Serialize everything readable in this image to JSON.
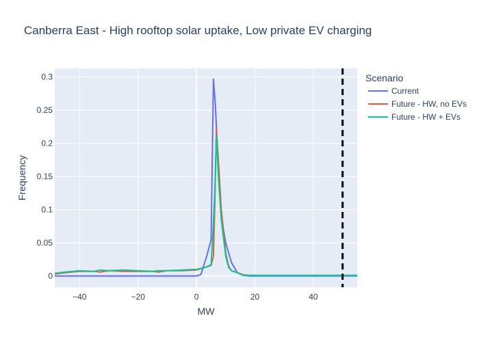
{
  "chart_data": {
    "type": "line",
    "title": "Canberra East - High rooftop solar uptake, Low private EV charging",
    "xlabel": "MW",
    "ylabel": "Frequency",
    "xlim": [
      -48.5,
      55
    ],
    "ylim": [
      -0.017,
      0.313
    ],
    "x_ticks": [
      -40,
      -20,
      0,
      20,
      40
    ],
    "x_tick_labels": [
      "−40",
      "−20",
      "0",
      "20",
      "40"
    ],
    "y_ticks": [
      0,
      0.05,
      0.1,
      0.15,
      0.2,
      0.25,
      0.3
    ],
    "y_tick_labels": [
      "0",
      "0.05",
      "0.1",
      "0.15",
      "0.2",
      "0.25",
      "0.3"
    ],
    "grid": true,
    "legend": {
      "title": "Scenario",
      "placement": "right"
    },
    "reference_line": {
      "x": 50,
      "style": "dashed",
      "color": "#000000"
    },
    "series": [
      {
        "name": "Current",
        "color": "#636efa",
        "x": [
          -48.5,
          0,
          1.5,
          3.5,
          5,
          5.8,
          6.5,
          7.5,
          8.5,
          10,
          12,
          14,
          16,
          18,
          20,
          55
        ],
        "y": [
          0,
          0,
          0.002,
          0.03,
          0.055,
          0.297,
          0.255,
          0.16,
          0.09,
          0.05,
          0.02,
          0.005,
          0.001,
          0,
          0,
          0
        ]
      },
      {
        "name": "Future - HW, no EVs",
        "color": "#ef553b",
        "x": [
          -48.5,
          -45,
          -40,
          -35,
          -33,
          -30,
          -25,
          -20,
          -15,
          -13,
          -10,
          -5,
          0,
          3,
          5,
          5.8,
          6.3,
          6.8,
          7.5,
          8.5,
          10,
          11,
          12,
          14,
          16,
          18,
          55
        ],
        "y": [
          0.003,
          0.005,
          0.007,
          0.007,
          0.006,
          0.008,
          0.007,
          0.007,
          0.007,
          0.006,
          0.008,
          0.008,
          0.009,
          0.013,
          0.016,
          0.03,
          0.11,
          0.222,
          0.175,
          0.1,
          0.035,
          0.015,
          0.008,
          0.005,
          0.002,
          0.001,
          0.001
        ]
      },
      {
        "name": "Future - HW + EVs",
        "color": "#00cc96",
        "x": [
          -48.5,
          -45,
          -40,
          -35,
          -33,
          -30,
          -25,
          -20,
          -15,
          -13,
          -10,
          -5,
          0,
          3,
          5,
          5.8,
          6.3,
          6.8,
          7.5,
          8.5,
          10,
          11,
          12,
          14,
          16,
          18,
          55
        ],
        "y": [
          0.004,
          0.006,
          0.008,
          0.007,
          0.009,
          0.008,
          0.009,
          0.008,
          0.007,
          0.008,
          0.008,
          0.009,
          0.01,
          0.013,
          0.017,
          0.08,
          0.13,
          0.213,
          0.15,
          0.085,
          0.03,
          0.013,
          0.008,
          0.005,
          0.001,
          0.001,
          0.001
        ]
      }
    ]
  }
}
